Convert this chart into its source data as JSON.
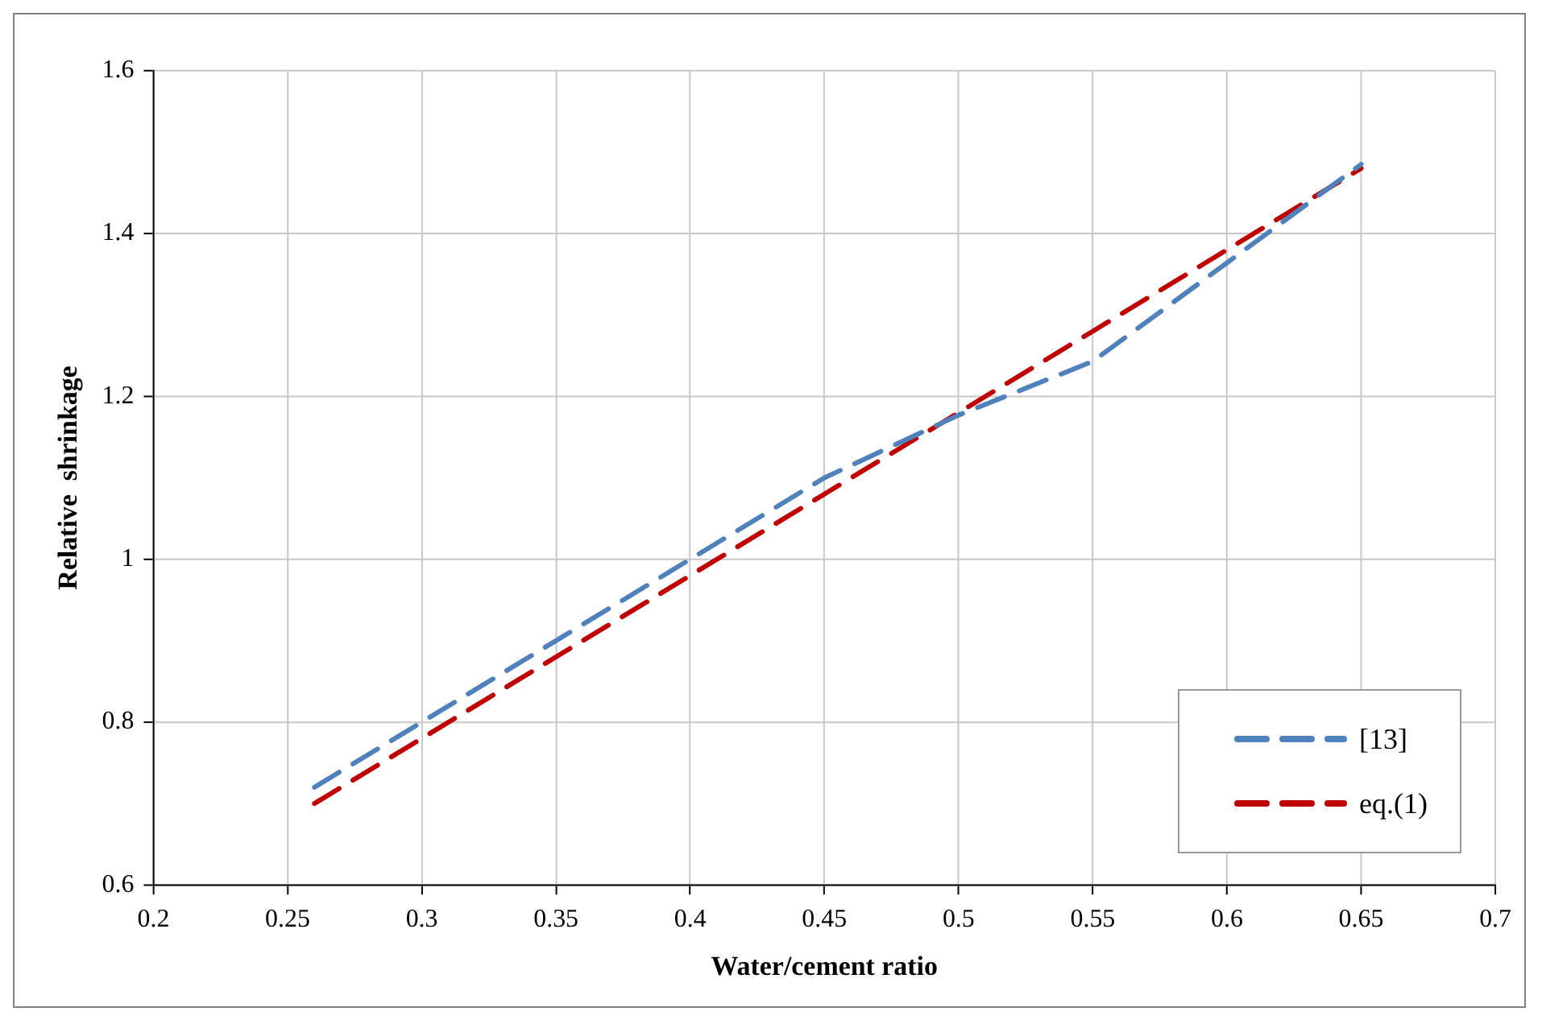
{
  "chart_data": {
    "type": "line",
    "xlabel": "Water/cement ratio",
    "ylabel": "Relative  shrinkage",
    "x": [
      0.26,
      0.3,
      0.35,
      0.4,
      0.45,
      0.5,
      0.55,
      0.6,
      0.65
    ],
    "series": [
      {
        "name": "[13]",
        "color": "#4f81bd",
        "values": [
          0.72,
          0.8,
          0.9,
          1.0,
          1.1,
          1.177,
          1.243,
          1.364,
          1.485
        ]
      },
      {
        "name": "eq.(1)",
        "color": "#c00000",
        "values": [
          0.7,
          0.78,
          0.88,
          0.98,
          1.08,
          1.18,
          1.28,
          1.38,
          1.48
        ]
      }
    ],
    "xlim": [
      0.2,
      0.7
    ],
    "xticks": [
      0.2,
      0.25,
      0.3,
      0.35,
      0.4,
      0.45,
      0.5,
      0.55,
      0.6,
      0.65,
      0.7
    ],
    "ylim": [
      0.6,
      1.6
    ],
    "yticks": [
      0.6,
      0.8,
      1,
      1.2,
      1.4,
      1.6
    ],
    "grid": true,
    "legend": "bottom right",
    "marker": "none",
    "line_style": "dashed"
  }
}
